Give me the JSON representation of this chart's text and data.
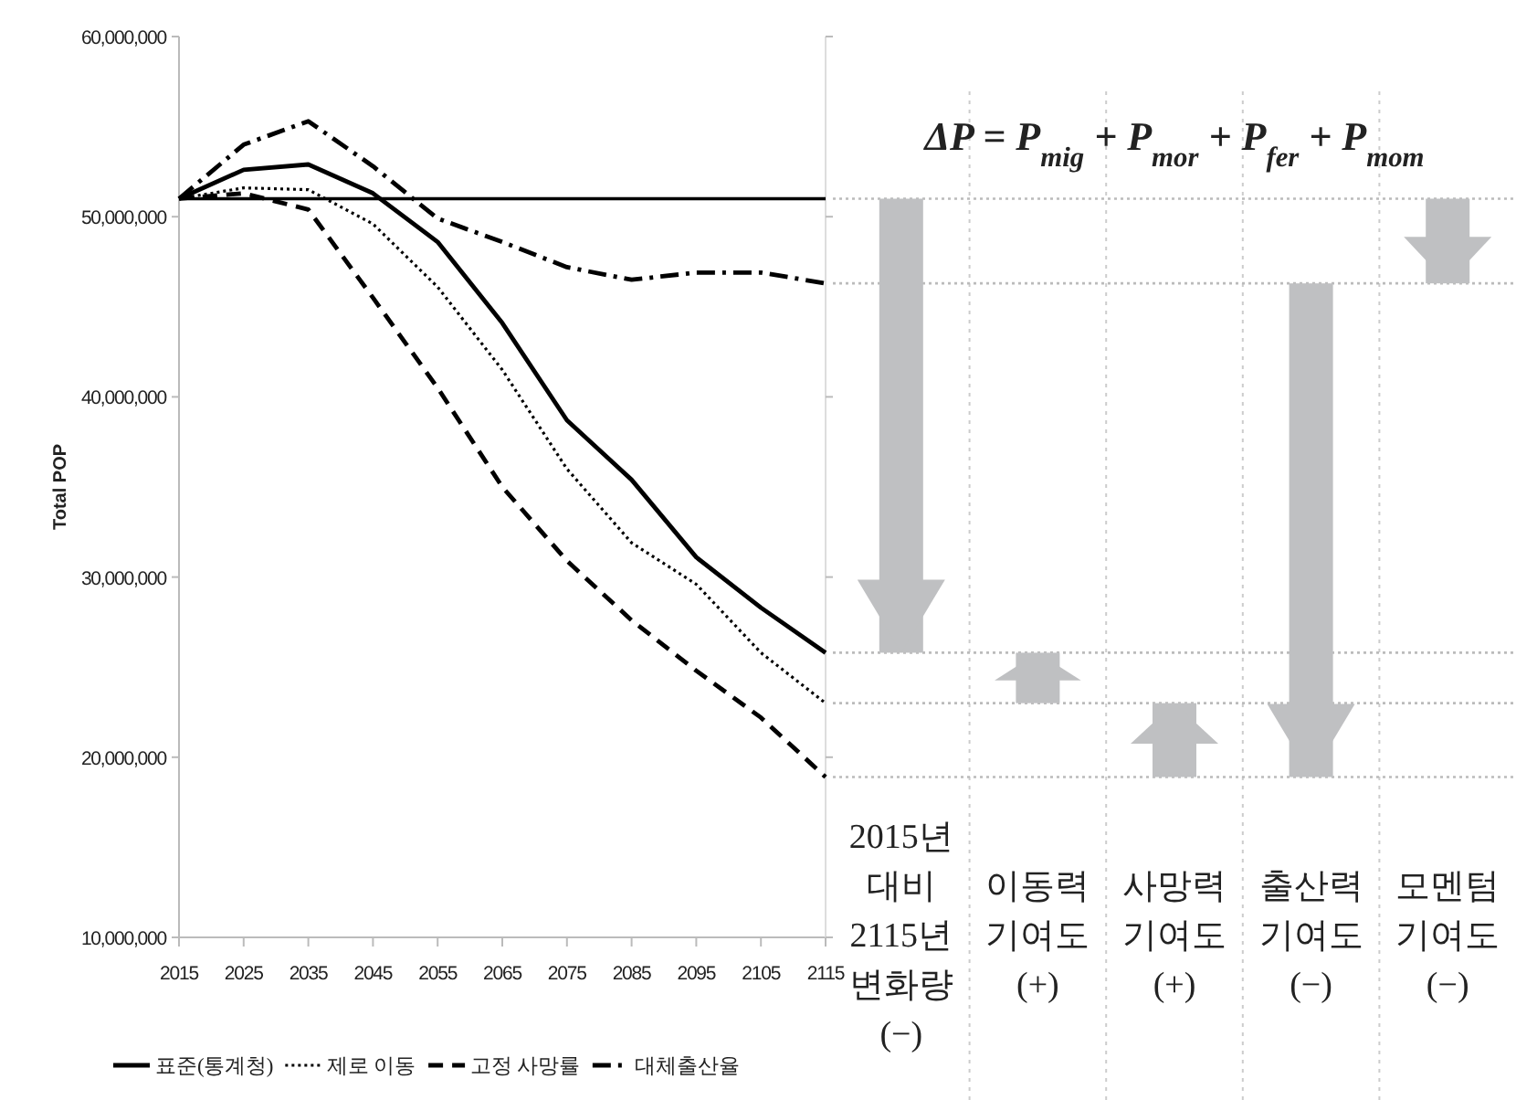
{
  "chart_data": [
    {
      "type": "line",
      "ylabel": "Total POP",
      "x": [
        2015,
        2025,
        2035,
        2045,
        2055,
        2065,
        2075,
        2085,
        2095,
        2105,
        2115
      ],
      "xlim": [
        2015,
        2115
      ],
      "xticks": [
        2015,
        2025,
        2035,
        2045,
        2055,
        2065,
        2075,
        2085,
        2095,
        2105,
        2115
      ],
      "ylim": [
        10000000,
        60000000
      ],
      "yticks": [
        {
          "value": 10000000,
          "label": "10,000,000"
        },
        {
          "value": 20000000,
          "label": "20,000,000"
        },
        {
          "value": 30000000,
          "label": "30,000,000"
        },
        {
          "value": 40000000,
          "label": "40,000,000"
        },
        {
          "value": 50000000,
          "label": "50,000,000"
        },
        {
          "value": 60000000,
          "label": "60,000,000"
        }
      ],
      "grid": false,
      "legend": "bottom",
      "series": [
        {
          "name": "표준(통계청)",
          "color": "#000000",
          "line_style": "solid",
          "values": [
            51000000,
            52600000,
            52900000,
            51300000,
            48600000,
            44100000,
            38700000,
            35400000,
            31100000,
            28300000,
            25800000
          ]
        },
        {
          "name": "제로 이동",
          "color": "#000000",
          "line_style": "dotted",
          "values": [
            51000000,
            51600000,
            51500000,
            49600000,
            46100000,
            41500000,
            36000000,
            31900000,
            29600000,
            25800000,
            23000000
          ]
        },
        {
          "name": "고정 사망률",
          "color": "#000000",
          "line_style": "dashed",
          "values": [
            51000000,
            51300000,
            50400000,
            45500000,
            40500000,
            35000000,
            30900000,
            27600000,
            24800000,
            22200000,
            18900000
          ]
        },
        {
          "name": "대체출산율",
          "color": "#000000",
          "line_style": "dashdot",
          "values": [
            51000000,
            54000000,
            55300000,
            52800000,
            49900000,
            48600000,
            47200000,
            46500000,
            46900000,
            46900000,
            46300000
          ]
        }
      ],
      "ref_lines": [
        {
          "axis": "y",
          "value": 51000000,
          "color": "#000000",
          "line_style": "solid"
        }
      ]
    },
    {
      "type": "bar",
      "title": "ΔP = P$_{mig}$ + P$_{mor}$ + P$_{fer}$ + P$_{mom}$",
      "categories": [
        "2015년 대비 2115년 변화량 (−)",
        "이동력 기여도 (+)",
        "사망력 기여도 (+)",
        "출산력 기여도 (−)",
        "모멘텀 기여도 (−)"
      ],
      "base": [
        51000000,
        23000000,
        18900000,
        46300000,
        51000000
      ],
      "values": [
        -25200000,
        2800000,
        4100000,
        -27400000,
        -4700000
      ],
      "color": "#bfc0c2",
      "ylim": [
        10000000,
        60000000
      ],
      "tick_labels": "x",
      "grid": "x",
      "yticks": [
        {
          "value": 10000000,
          "label": null
        },
        {
          "value": 20000000,
          "label": null
        },
        {
          "value": 30000000,
          "label": null
        },
        {
          "value": 40000000,
          "label": null
        },
        {
          "value": 50000000,
          "label": null
        },
        {
          "value": 60000000,
          "label": null
        }
      ],
      "ref_lines": [
        {
          "axis": "y",
          "value": 51000000,
          "color": "#bbbbbb",
          "line_style": "dotted"
        },
        {
          "axis": "y",
          "value": 46300000,
          "color": "#bbbbbb",
          "line_style": "dotted"
        },
        {
          "axis": "y",
          "value": 25800000,
          "color": "#bbbbbb",
          "line_style": "dotted"
        },
        {
          "axis": "y",
          "value": 23000000,
          "color": "#bbbbbb",
          "line_style": "dotted"
        },
        {
          "axis": "y",
          "value": 18900000,
          "color": "#bbbbbb",
          "line_style": "dotted"
        }
      ]
    }
  ]
}
